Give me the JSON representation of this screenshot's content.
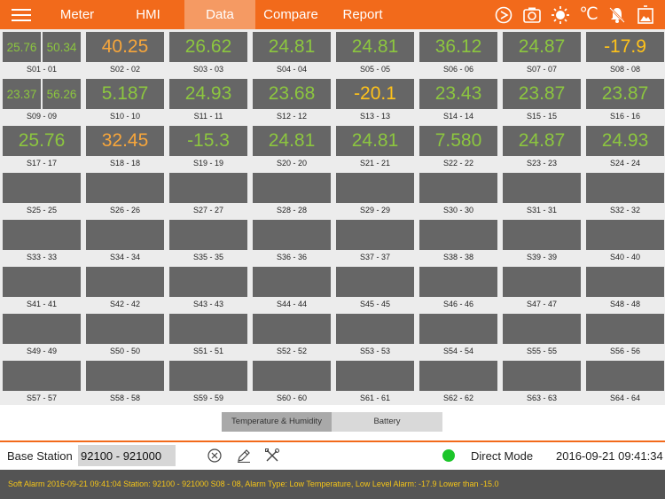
{
  "nav": {
    "tabs": [
      "Meter",
      "HMI",
      "Data",
      "Compare",
      "Report"
    ],
    "active_tab": "Data",
    "celsius_symbol": "℃",
    "icons": [
      "menu-icon",
      "sync-icon",
      "camera-icon",
      "brightness-icon",
      "celsius-icon",
      "alarm-bell-off-icon",
      "picture-frame-icon"
    ]
  },
  "colors": {
    "accent": "#f26a1b",
    "tab_active": "#f59a63",
    "cell_bg": "#666666",
    "value_green": "#8cc63f",
    "value_orange": "#f7a63b",
    "value_yellow": "#ffc21a",
    "alarm_text": "#f5c518",
    "status_green": "#1cc52a"
  },
  "sensors": [
    {
      "label": "S01 - 01",
      "temp": "25.76",
      "humidity": "50.34",
      "color": "green"
    },
    {
      "label": "S02 - 02",
      "value": "40.25",
      "color": "orange"
    },
    {
      "label": "S03 - 03",
      "value": "26.62",
      "color": "green"
    },
    {
      "label": "S04 - 04",
      "value": "24.81",
      "color": "green"
    },
    {
      "label": "S05 - 05",
      "value": "24.81",
      "color": "green"
    },
    {
      "label": "S06 - 06",
      "value": "36.12",
      "color": "green"
    },
    {
      "label": "S07 - 07",
      "value": "24.87",
      "color": "green"
    },
    {
      "label": "S08 - 08",
      "value": "-17.9",
      "color": "yellow"
    },
    {
      "label": "S09 - 09",
      "temp": "23.37",
      "humidity": "56.26",
      "color": "green"
    },
    {
      "label": "S10 - 10",
      "value": "5.187",
      "color": "green"
    },
    {
      "label": "S11 - 11",
      "value": "24.93",
      "color": "green"
    },
    {
      "label": "S12 - 12",
      "value": "23.68",
      "color": "green"
    },
    {
      "label": "S13 - 13",
      "value": "-20.1",
      "color": "yellow"
    },
    {
      "label": "S14 - 14",
      "value": "23.43",
      "color": "green"
    },
    {
      "label": "S15 - 15",
      "value": "23.87",
      "color": "green"
    },
    {
      "label": "S16 - 16",
      "value": "23.87",
      "color": "green"
    },
    {
      "label": "S17 - 17",
      "value": "25.76",
      "color": "green"
    },
    {
      "label": "S18 - 18",
      "value": "32.45",
      "color": "orange"
    },
    {
      "label": "S19 - 19",
      "value": "-15.3",
      "color": "green"
    },
    {
      "label": "S20 - 20",
      "value": "24.81",
      "color": "green"
    },
    {
      "label": "S21 - 21",
      "value": "24.81",
      "color": "green"
    },
    {
      "label": "S22 - 22",
      "value": "7.580",
      "color": "green"
    },
    {
      "label": "S23 - 23",
      "value": "24.87",
      "color": "green"
    },
    {
      "label": "S24 - 24",
      "value": "24.93",
      "color": "green"
    },
    {
      "label": "S25 - 25"
    },
    {
      "label": "S26 - 26"
    },
    {
      "label": "S27 - 27"
    },
    {
      "label": "S28 - 28"
    },
    {
      "label": "S29 - 29"
    },
    {
      "label": "S30 - 30"
    },
    {
      "label": "S31 - 31"
    },
    {
      "label": "S32 - 32"
    },
    {
      "label": "S33 - 33"
    },
    {
      "label": "S34 - 34"
    },
    {
      "label": "S35 - 35"
    },
    {
      "label": "S36 - 36"
    },
    {
      "label": "S37 - 37"
    },
    {
      "label": "S38 - 38"
    },
    {
      "label": "S39 - 39"
    },
    {
      "label": "S40 - 40"
    },
    {
      "label": "S41 - 41"
    },
    {
      "label": "S42 - 42"
    },
    {
      "label": "S43 - 43"
    },
    {
      "label": "S44 - 44"
    },
    {
      "label": "S45 - 45"
    },
    {
      "label": "S46 - 46"
    },
    {
      "label": "S47 - 47"
    },
    {
      "label": "S48 - 48"
    },
    {
      "label": "S49 - 49"
    },
    {
      "label": "S50 - 50"
    },
    {
      "label": "S51 - 51"
    },
    {
      "label": "S52 - 52"
    },
    {
      "label": "S53 - 53"
    },
    {
      "label": "S54 - 54"
    },
    {
      "label": "S55 - 55"
    },
    {
      "label": "S56 - 56"
    },
    {
      "label": "S57 - 57"
    },
    {
      "label": "S58 - 58"
    },
    {
      "label": "S59 - 59"
    },
    {
      "label": "S60 - 60"
    },
    {
      "label": "S61 - 61"
    },
    {
      "label": "S62 - 62"
    },
    {
      "label": "S63 - 63"
    },
    {
      "label": "S64 - 64"
    }
  ],
  "segment": {
    "options": [
      "Temperature & Humidity",
      "Battery"
    ],
    "selected": "Temperature & Humidity"
  },
  "station": {
    "label": "Base Station",
    "value": "92100 - 921000",
    "icons": [
      "clear-icon",
      "edit-icon",
      "settings-tools-icon"
    ],
    "status": "connected",
    "mode": "Direct Mode",
    "datetime": "2016-09-21 09:41:34"
  },
  "alarm": {
    "text": "Soft Alarm 2016-09-21 09:41:04 Station: 92100    - 921000 S08 - 08, Alarm Type: Low Temperature, Low Level Alarm: -17.9 Lower than -15.0"
  }
}
